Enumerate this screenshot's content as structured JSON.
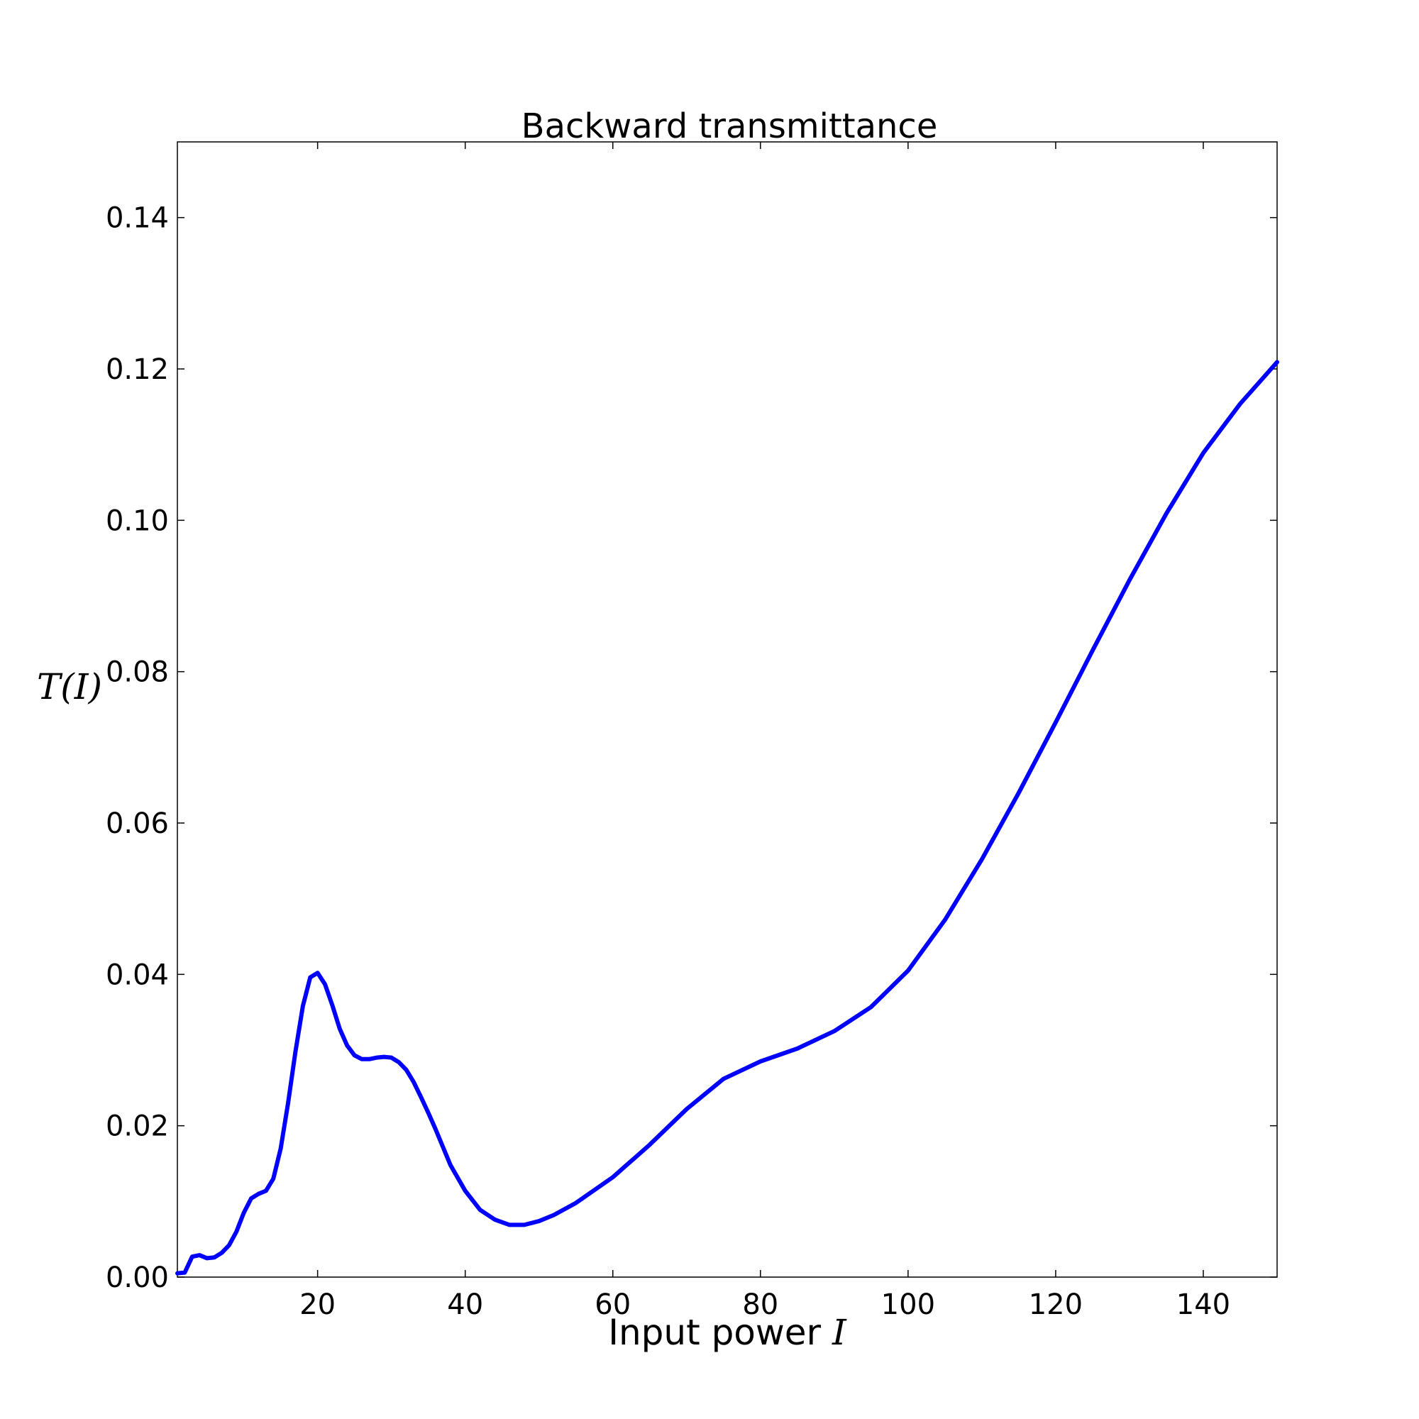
{
  "chart_data": {
    "type": "line",
    "title": "Backward transmittance",
    "xlabel": "Input power",
    "xlabel_math": "I",
    "ylabel": "T(I)",
    "xlim": [
      1,
      150
    ],
    "ylim": [
      0,
      0.15
    ],
    "xticks": [
      20,
      40,
      60,
      80,
      100,
      120,
      140
    ],
    "yticks": [
      0.0,
      0.02,
      0.04,
      0.06,
      0.08,
      0.1,
      0.12,
      0.14
    ],
    "ytick_labels": [
      "0.00",
      "0.02",
      "0.04",
      "0.06",
      "0.08",
      "0.10",
      "0.12",
      "0.14"
    ],
    "grid": false,
    "line_color": "#0000ff",
    "series": [
      {
        "x": [
          1,
          2,
          3,
          4,
          5,
          6,
          7,
          8,
          9,
          10,
          11,
          12,
          13,
          14,
          15,
          16,
          17,
          18,
          19,
          20,
          21,
          22,
          23,
          24,
          25,
          26,
          27,
          28,
          29,
          30,
          31,
          32,
          33,
          34,
          35,
          36,
          38,
          40,
          42,
          44,
          46,
          48,
          50,
          52,
          55,
          60,
          65,
          70,
          75,
          80,
          85,
          90,
          95,
          100,
          105,
          110,
          115,
          120,
          125,
          130,
          135,
          140,
          145,
          150
        ],
        "y": [
          0.0005,
          0.0006,
          0.0027,
          0.0029,
          0.0025,
          0.0026,
          0.0032,
          0.0042,
          0.006,
          0.0085,
          0.0104,
          0.011,
          0.0114,
          0.013,
          0.017,
          0.023,
          0.0298,
          0.0358,
          0.0396,
          0.0402,
          0.0387,
          0.0359,
          0.0328,
          0.0306,
          0.0293,
          0.0288,
          0.0288,
          0.029,
          0.0291,
          0.029,
          0.0284,
          0.0274,
          0.0258,
          0.0238,
          0.0217,
          0.0195,
          0.0148,
          0.0114,
          0.0089,
          0.0076,
          0.0069,
          0.0069,
          0.0074,
          0.0082,
          0.0098,
          0.0132,
          0.0175,
          0.0222,
          0.0262,
          0.0285,
          0.0302,
          0.0325,
          0.0357,
          0.0405,
          0.0472,
          0.0552,
          0.064,
          0.0733,
          0.0828,
          0.0921,
          0.1009,
          0.1089,
          0.1154,
          0.1209
        ]
      }
    ]
  }
}
